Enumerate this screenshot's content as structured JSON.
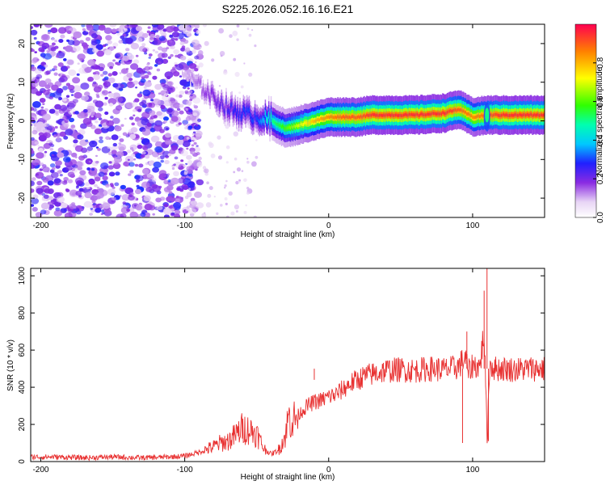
{
  "title": "S225.2026.052.16.16.E21",
  "chart_data": [
    {
      "type": "heatmap",
      "xlabel": "Height of straight line (km)",
      "ylabel": "Frequency (Hz)",
      "xlim": [
        -207,
        150
      ],
      "ylim": [
        -25,
        25
      ],
      "xticks": [
        "-200",
        "-100",
        "0",
        "100"
      ],
      "xtick_values": [
        -200,
        -100,
        0,
        100
      ],
      "yticks": [
        "-20",
        "-10",
        "0",
        "10",
        "20"
      ],
      "ytick_values": [
        -20,
        -10,
        0,
        10,
        20
      ],
      "colorbar": {
        "label": "Normalized spectral amplitude",
        "range": [
          0,
          1
        ],
        "ticks": [
          "0.0",
          "0.2",
          "0.4",
          "0.6",
          "0.8"
        ],
        "tick_values": [
          0.0,
          0.2,
          0.4,
          0.6,
          0.8
        ]
      },
      "ridge": {
        "x": [
          -100,
          -90,
          -80,
          -70,
          -60,
          -50,
          -40,
          -30,
          -20,
          -10,
          0,
          10,
          20,
          30,
          40,
          60,
          80,
          90,
          100,
          110,
          120,
          150
        ],
        "freq": [
          12,
          9,
          6,
          3,
          2,
          1,
          0,
          -2,
          -1,
          0,
          1,
          1,
          1,
          1.5,
          1.5,
          1.5,
          2,
          3,
          1,
          1.5,
          1.5,
          1.5
        ],
        "amplitude": [
          0.1,
          0.15,
          0.2,
          0.25,
          0.3,
          0.3,
          0.5,
          0.6,
          0.7,
          0.8,
          0.85,
          0.9,
          0.9,
          0.95,
          0.95,
          0.95,
          0.95,
          0.9,
          0.85,
          0.9,
          0.95,
          0.95
        ]
      },
      "noise_region": {
        "x_from": -207,
        "x_to": -95,
        "amplitude": 0.1
      }
    },
    {
      "type": "line",
      "xlabel": "Height of straight line (km)",
      "ylabel": "SNR (10 * v/v)",
      "xlim": [
        -207,
        150
      ],
      "ylim": [
        0,
        1040
      ],
      "xticks": [
        "-200",
        "-100",
        "0",
        "100"
      ],
      "xtick_values": [
        -200,
        -100,
        0,
        100
      ],
      "yticks": [
        "0",
        "200",
        "400",
        "600",
        "800",
        "1000"
      ],
      "ytick_values": [
        0,
        200,
        400,
        600,
        800,
        1000
      ],
      "color": "#e83030",
      "series": [
        {
          "name": "SNR",
          "x": [
            -207,
            -190,
            -170,
            -150,
            -130,
            -110,
            -100,
            -90,
            -80,
            -75,
            -70,
            -65,
            -60,
            -55,
            -50,
            -45,
            -40,
            -35,
            -30,
            -28,
            -25,
            -20,
            -15,
            -10,
            -5,
            0,
            5,
            10,
            15,
            20,
            25,
            30,
            35,
            40,
            50,
            60,
            70,
            80,
            85,
            90,
            95,
            97,
            100,
            105,
            108,
            110,
            112,
            115,
            120,
            130,
            140,
            150
          ],
          "y": [
            25,
            25,
            20,
            25,
            20,
            25,
            30,
            50,
            80,
            100,
            110,
            140,
            180,
            170,
            150,
            70,
            40,
            60,
            140,
            240,
            220,
            260,
            300,
            320,
            330,
            350,
            360,
            390,
            420,
            440,
            460,
            470,
            480,
            490,
            495,
            490,
            500,
            495,
            500,
            510,
            560,
            480,
            520,
            510,
            700,
            150,
            530,
            500,
            500,
            495,
            500,
            500
          ]
        }
      ],
      "spikes": [
        {
          "x": -10,
          "y": 440
        },
        {
          "x": 93,
          "y": 100
        },
        {
          "x": 96,
          "y": 700
        },
        {
          "x": 108,
          "y": 920
        },
        {
          "x": 110,
          "y": 1040
        },
        {
          "x": 111,
          "y": 110
        }
      ]
    }
  ]
}
